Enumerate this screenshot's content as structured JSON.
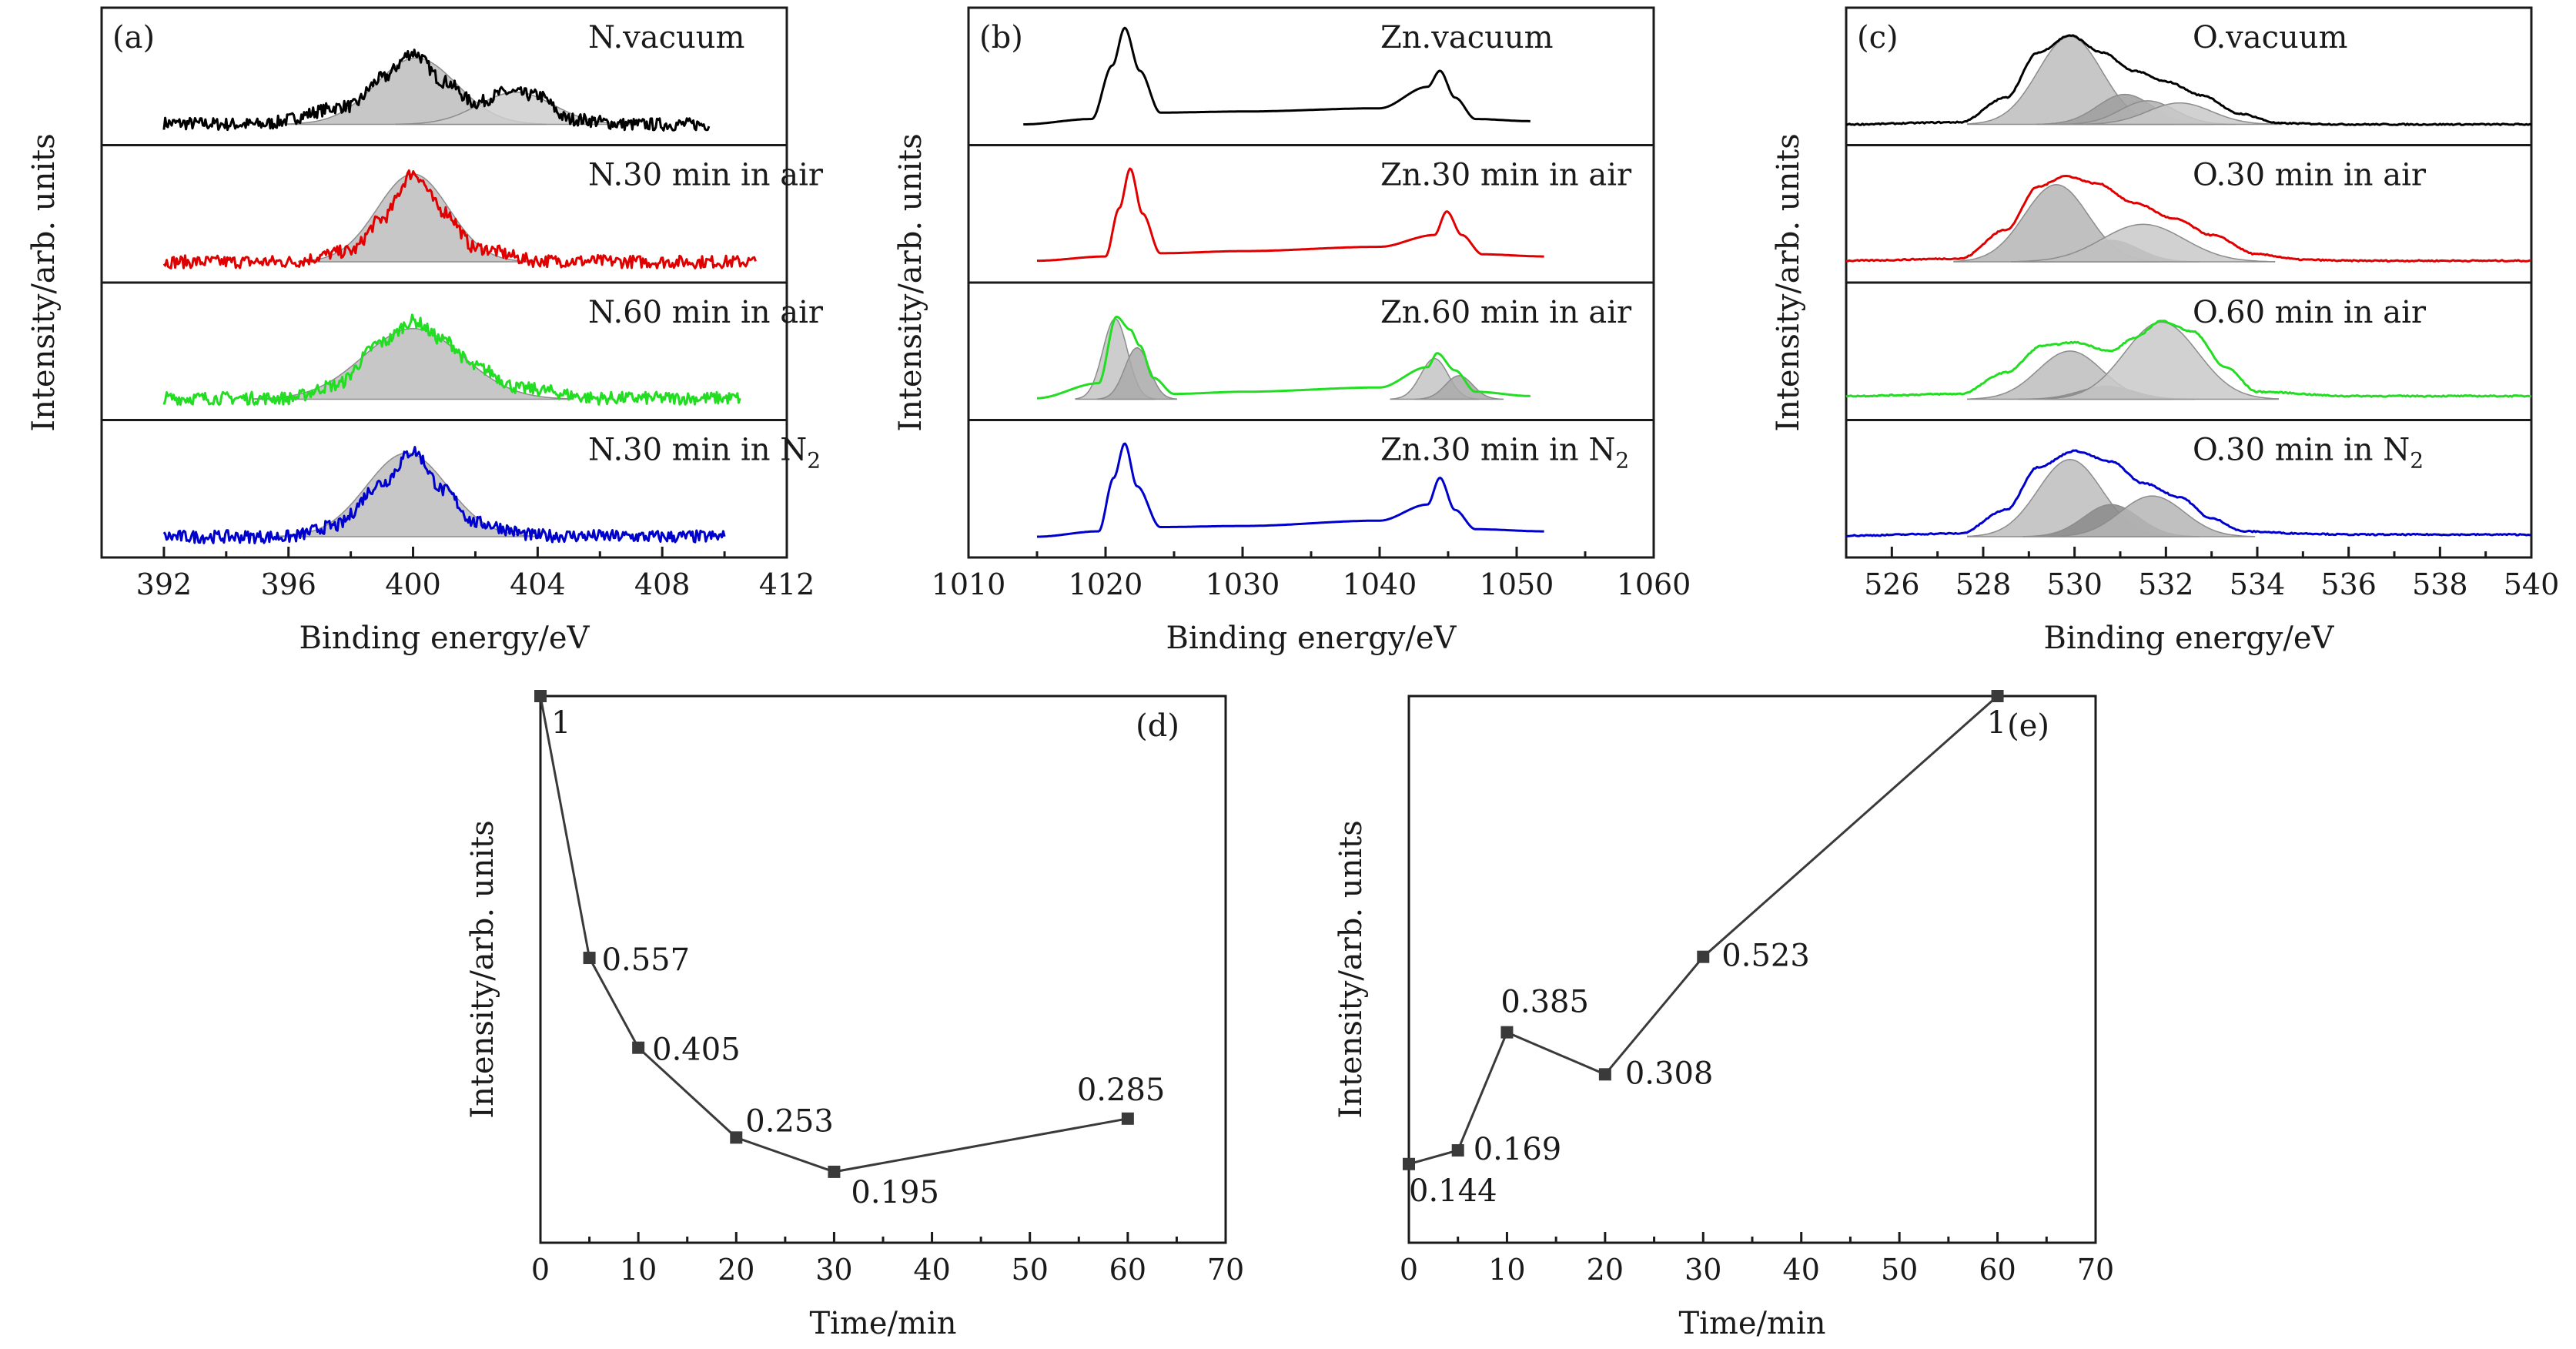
{
  "chart_data": [
    {
      "id": "a",
      "panel_label": "(a)",
      "type": "line",
      "xlabel": "Binding energy/eV",
      "ylabel": "Intensity/arb. units",
      "xlim": [
        390,
        412
      ],
      "xticks": [
        392,
        396,
        400,
        404,
        408,
        412
      ],
      "xticks_visible": true,
      "series": [
        {
          "name": "N.vacuum",
          "color": "#000000",
          "x": [
            392,
            395,
            398,
            399,
            400,
            401,
            402,
            403,
            404,
            405,
            407,
            409.5
          ],
          "y": [
            0.06,
            0.05,
            0.22,
            0.48,
            0.72,
            0.45,
            0.25,
            0.35,
            0.32,
            0.1,
            0.05,
            0.05
          ],
          "fits": [
            {
              "center": 400.1,
              "width": 1.3,
              "height": 0.62,
              "shade": "#bdbdbd"
            },
            {
              "center": 403.3,
              "width": 1.2,
              "height": 0.3,
              "shade": "#cfcfcf"
            }
          ]
        },
        {
          "name": "N.30 min in air",
          "color": "#e00000",
          "x": [
            392,
            396,
            398,
            399,
            400,
            401,
            402,
            404,
            408,
            411
          ],
          "y": [
            0.05,
            0.05,
            0.15,
            0.45,
            0.88,
            0.52,
            0.18,
            0.06,
            0.05,
            0.05
          ],
          "fits": [
            {
              "center": 400.0,
              "width": 1.15,
              "height": 0.82,
              "shade": "#bdbdbd"
            }
          ]
        },
        {
          "name": "N.60 min in air",
          "color": "#22dd22",
          "x": [
            392,
            396,
            397.5,
            399,
            400,
            401,
            402,
            403.5,
            406,
            410.5
          ],
          "y": [
            0.06,
            0.06,
            0.18,
            0.58,
            0.78,
            0.6,
            0.35,
            0.15,
            0.06,
            0.06
          ],
          "fits": [
            {
              "center": 400.0,
              "width": 1.6,
              "height": 0.66,
              "shade": "#bdbdbd"
            }
          ]
        },
        {
          "name": "N.30 min in N",
          "name_sub": "2",
          "color": "#0000cc",
          "x": [
            392,
            396,
            397.5,
            399,
            400,
            401,
            402,
            404,
            408,
            410
          ],
          "y": [
            0.05,
            0.05,
            0.15,
            0.55,
            0.85,
            0.48,
            0.18,
            0.06,
            0.05,
            0.05
          ],
          "fits": [
            {
              "center": 399.8,
              "width": 1.3,
              "height": 0.78,
              "shade": "#bdbdbd"
            }
          ]
        }
      ]
    },
    {
      "id": "b",
      "panel_label": "(b)",
      "type": "line",
      "xlabel": "Binding energy/eV",
      "ylabel": "Intensity/arb. units",
      "xlim": [
        1010,
        1060
      ],
      "xticks": [
        1010,
        1020,
        1030,
        1040,
        1050,
        1060
      ],
      "xticks_visible": true,
      "series": [
        {
          "name": "Zn.vacuum",
          "color": "#000000",
          "x": [
            1014,
            1019,
            1020.5,
            1021.4,
            1022.5,
            1024,
            1030,
            1040,
            1043.5,
            1044.4,
            1045.5,
            1047,
            1051
          ],
          "y": [
            0.05,
            0.1,
            0.6,
            0.95,
            0.55,
            0.16,
            0.17,
            0.2,
            0.4,
            0.55,
            0.3,
            0.1,
            0.08
          ],
          "fits": []
        },
        {
          "name": "Zn.30 min in air",
          "color": "#e00000",
          "x": [
            1015,
            1020,
            1021,
            1021.8,
            1022.7,
            1024,
            1030,
            1040,
            1044,
            1044.9,
            1046,
            1047.5,
            1052
          ],
          "y": [
            0.06,
            0.1,
            0.55,
            0.92,
            0.5,
            0.13,
            0.15,
            0.19,
            0.3,
            0.52,
            0.3,
            0.12,
            0.1
          ],
          "fits": []
        },
        {
          "name": "Zn.60 min in air",
          "color": "#22dd22",
          "x": [
            1015,
            1019.5,
            1020.8,
            1021.8,
            1022.5,
            1023.5,
            1025,
            1030,
            1040,
            1043.5,
            1044.2,
            1045.5,
            1047,
            1051
          ],
          "y": [
            0.06,
            0.2,
            0.82,
            0.7,
            0.55,
            0.25,
            0.1,
            0.12,
            0.16,
            0.35,
            0.48,
            0.32,
            0.12,
            0.08
          ],
          "fits": [
            {
              "center": 1020.7,
              "width": 0.9,
              "height": 0.75,
              "shade": "#c4c4c4"
            },
            {
              "center": 1022.3,
              "width": 0.9,
              "height": 0.48,
              "shade": "#a9a9a9"
            },
            {
              "center": 1044.0,
              "width": 1.0,
              "height": 0.38,
              "shade": "#c4c4c4"
            },
            {
              "center": 1045.8,
              "width": 1.0,
              "height": 0.22,
              "shade": "#a9a9a9"
            }
          ]
        },
        {
          "name": "Zn.30 min in N",
          "name_sub": "2",
          "color": "#0000cc",
          "x": [
            1015,
            1019.5,
            1020.6,
            1021.4,
            1022.3,
            1024,
            1030,
            1040,
            1043.5,
            1044.4,
            1045.5,
            1047,
            1052
          ],
          "y": [
            0.05,
            0.1,
            0.6,
            0.92,
            0.52,
            0.14,
            0.15,
            0.2,
            0.35,
            0.6,
            0.3,
            0.12,
            0.1
          ],
          "fits": []
        }
      ]
    },
    {
      "id": "c",
      "panel_label": "(c)",
      "type": "line",
      "xlabel": "Binding energy/eV",
      "ylabel": "Intensity/arb. units",
      "xlim": [
        525,
        540
      ],
      "xticks": [
        526,
        528,
        530,
        532,
        534,
        536,
        538,
        540
      ],
      "xticks_visible": true,
      "series": [
        {
          "name": "O.vacuum",
          "color": "#000000",
          "x": [
            525,
            527.5,
            528.5,
            529.2,
            529.9,
            530.6,
            531.3,
            532,
            532.8,
            533.6,
            534.5,
            536,
            540
          ],
          "y": [
            0.05,
            0.07,
            0.3,
            0.72,
            0.88,
            0.72,
            0.55,
            0.45,
            0.32,
            0.15,
            0.06,
            0.05,
            0.05
          ],
          "fits": [
            {
              "center": 529.9,
              "width": 0.7,
              "height": 0.82,
              "shade": "#bdbdbd"
            },
            {
              "center": 531.1,
              "width": 0.6,
              "height": 0.28,
              "shade": "#9e9e9e"
            },
            {
              "center": 531.6,
              "width": 0.6,
              "height": 0.22,
              "shade": "#b0b0b0"
            },
            {
              "center": 532.3,
              "width": 0.7,
              "height": 0.2,
              "shade": "#c9c9c9"
            }
          ]
        },
        {
          "name": "O.30 min in air",
          "color": "#e00000",
          "x": [
            525,
            527.5,
            528.5,
            529.2,
            529.8,
            530.5,
            531.3,
            532.2,
            533,
            534,
            535,
            536,
            540
          ],
          "y": [
            0.06,
            0.08,
            0.35,
            0.75,
            0.85,
            0.78,
            0.6,
            0.45,
            0.3,
            0.12,
            0.07,
            0.06,
            0.06
          ],
          "fits": [
            {
              "center": 529.6,
              "width": 0.7,
              "height": 0.72,
              "shade": "#b5b5b5"
            },
            {
              "center": 530.8,
              "width": 0.6,
              "height": 0.2,
              "shade": "#808080"
            },
            {
              "center": 531.5,
              "width": 0.9,
              "height": 0.35,
              "shade": "#c9c9c9"
            }
          ]
        },
        {
          "name": "O.60 min in air",
          "color": "#22dd22",
          "x": [
            525,
            527.5,
            528.5,
            529.3,
            530,
            530.8,
            531.3,
            531.9,
            532.6,
            533.3,
            534,
            536,
            540
          ],
          "y": [
            0.08,
            0.1,
            0.3,
            0.55,
            0.58,
            0.5,
            0.62,
            0.78,
            0.68,
            0.35,
            0.12,
            0.08,
            0.08
          ],
          "fits": [
            {
              "center": 529.9,
              "width": 0.7,
              "height": 0.45,
              "shade": "#bdbdbd"
            },
            {
              "center": 530.7,
              "width": 0.6,
              "height": 0.12,
              "shade": "#8a8a8a"
            },
            {
              "center": 531.9,
              "width": 0.8,
              "height": 0.72,
              "shade": "#c9c9c9"
            }
          ]
        },
        {
          "name": "O.30 min in N",
          "name_sub": "2",
          "color": "#0000cc",
          "x": [
            525,
            527.5,
            528.5,
            529.2,
            530,
            530.8,
            531.5,
            532.3,
            533,
            533.7,
            535,
            536,
            540
          ],
          "y": [
            0.06,
            0.08,
            0.3,
            0.7,
            0.85,
            0.75,
            0.55,
            0.42,
            0.22,
            0.1,
            0.08,
            0.07,
            0.07
          ],
          "fits": [
            {
              "center": 529.9,
              "width": 0.7,
              "height": 0.72,
              "shade": "#bdbdbd"
            },
            {
              "center": 530.8,
              "width": 0.6,
              "height": 0.3,
              "shade": "#8a8a8a"
            },
            {
              "center": 531.7,
              "width": 0.7,
              "height": 0.38,
              "shade": "#b5b5b5"
            }
          ]
        }
      ]
    },
    {
      "id": "d",
      "panel_label": "(d)",
      "type": "line",
      "xlabel": "Time/min",
      "ylabel": "Intensity/arb. units",
      "xlim": [
        0,
        70
      ],
      "xticks": [
        0,
        10,
        20,
        30,
        40,
        50,
        60,
        70
      ],
      "ylim": [
        0.075,
        1.0
      ],
      "line_color": "#3a3a3a",
      "x": [
        0,
        5,
        10,
        20,
        30,
        60
      ],
      "y": [
        1,
        0.557,
        0.405,
        0.253,
        0.195,
        0.285
      ],
      "point_labels": [
        "1",
        "0.557",
        "0.405",
        "0.253",
        "0.195",
        "0.285"
      ]
    },
    {
      "id": "e",
      "panel_label": "(e)",
      "type": "line",
      "xlabel": "Time/min",
      "ylabel": "Intensity/arb. units",
      "xlim": [
        0,
        70
      ],
      "xticks": [
        0,
        10,
        20,
        30,
        40,
        50,
        60,
        70
      ],
      "ylim": [
        0.0,
        1.0
      ],
      "line_color": "#3a3a3a",
      "x": [
        0,
        5,
        10,
        20,
        30,
        60
      ],
      "y": [
        0.144,
        0.169,
        0.385,
        0.308,
        0.523,
        1
      ],
      "point_labels": [
        "0.144",
        "0.169",
        "0.385",
        "0.308",
        "0.523",
        "1"
      ]
    }
  ]
}
